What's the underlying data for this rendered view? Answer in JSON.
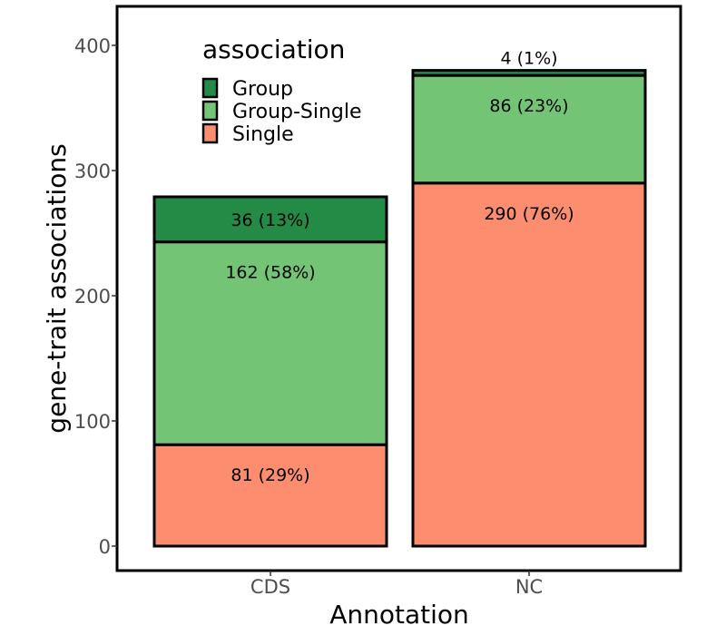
{
  "chart_data": {
    "type": "bar",
    "stacked": true,
    "title": "",
    "xlabel": "Annotation",
    "ylabel": "gene-trait associations",
    "categories": [
      "CDS",
      "NC"
    ],
    "ylim": [
      0,
      420
    ],
    "yticks": [
      0,
      100,
      200,
      300,
      400
    ],
    "grid": false,
    "legend": {
      "title": "association",
      "position": "top-left",
      "entries": [
        "Group",
        "Group-Single",
        "Single"
      ]
    },
    "series": [
      {
        "name": "Single",
        "color": "#FC8D6E",
        "values": [
          81,
          290
        ],
        "labels": [
          "81 (29%)",
          "290 (76%)"
        ]
      },
      {
        "name": "Group-Single",
        "color": "#74C476",
        "values": [
          162,
          86
        ],
        "labels": [
          "162 (58%)",
          "86 (23%)"
        ]
      },
      {
        "name": "Group",
        "color": "#238B45",
        "values": [
          36,
          4
        ],
        "labels": [
          "36 (13%)",
          "4 (1%)"
        ]
      }
    ]
  }
}
